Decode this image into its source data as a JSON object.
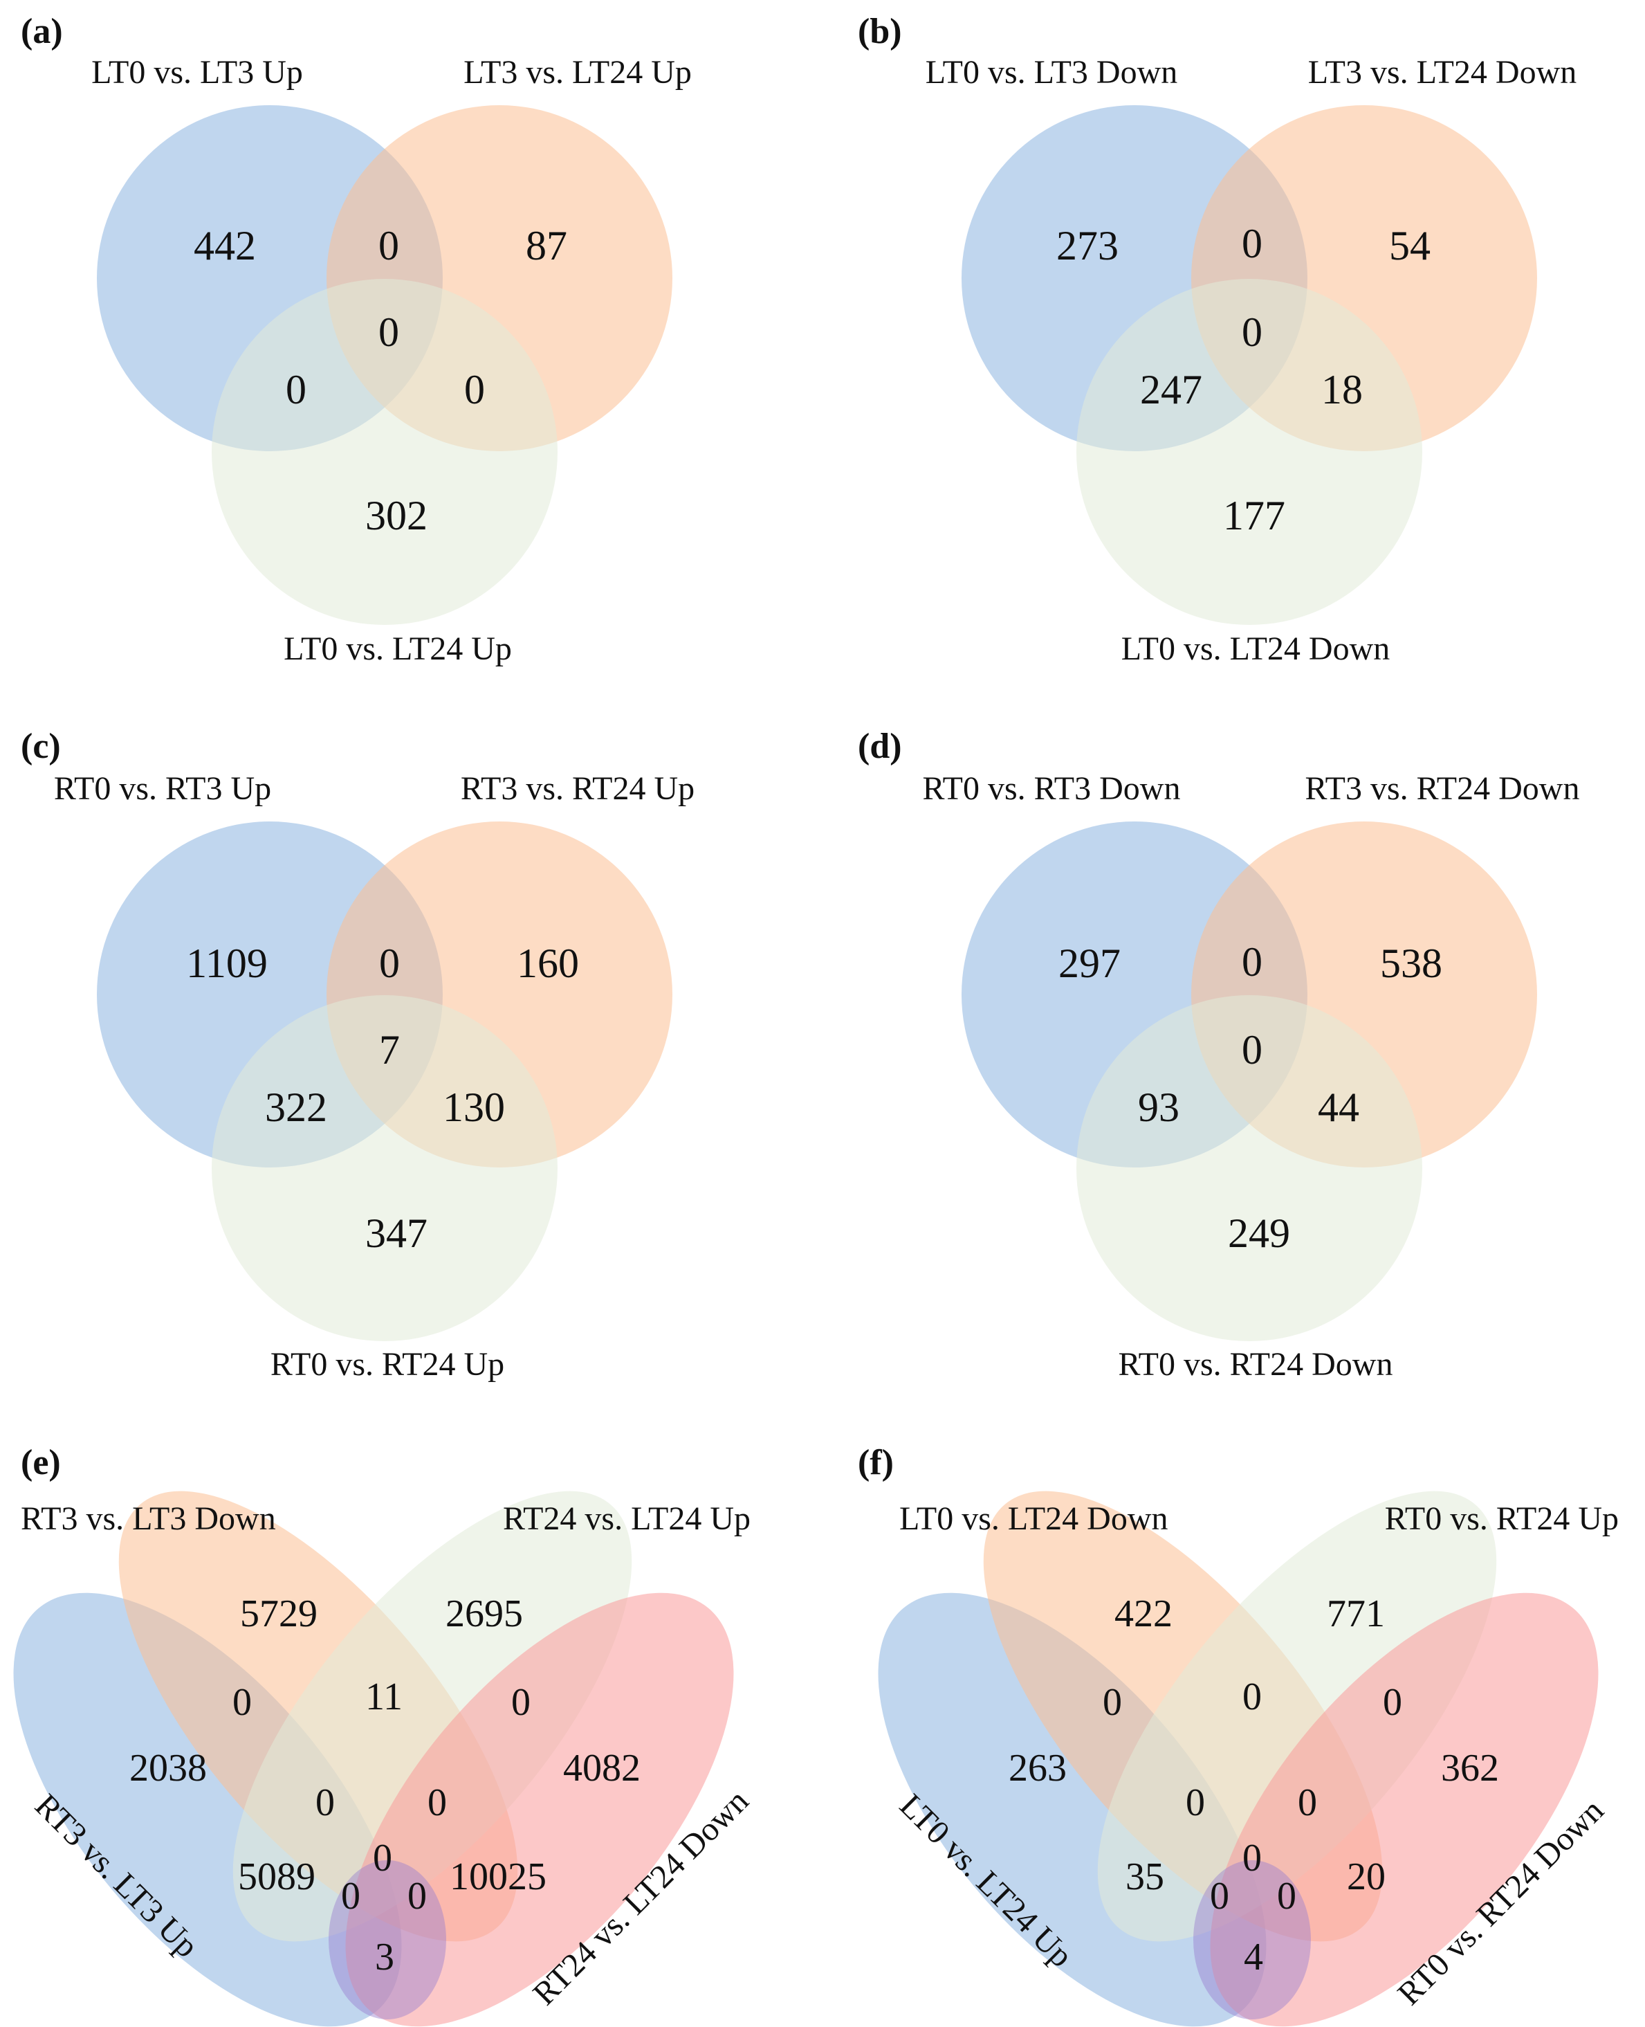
{
  "colors": {
    "blue": "#8cb4e0",
    "orange": "#fbbf93",
    "green": "#e1ebd9",
    "red": "#f99a9a",
    "purple": "#9a7fcf"
  },
  "panels": [
    {
      "letter": "(a)",
      "sets": [
        "LT0 vs. LT3 Up",
        "LT3 vs. LT24 Up",
        "LT0 vs. LT24 Up"
      ],
      "regions": {
        "A": "442",
        "B": "87",
        "C": "302",
        "AB": "0",
        "AC": "0",
        "BC": "0",
        "ABC": "0"
      }
    },
    {
      "letter": "(b)",
      "sets": [
        "LT0 vs. LT3 Down",
        "LT3 vs. LT24 Down",
        "LT0 vs. LT24 Down"
      ],
      "regions": {
        "A": "273",
        "B": "54",
        "C": "177",
        "AB": "0",
        "AC": "247",
        "BC": "18",
        "ABC": "0"
      }
    },
    {
      "letter": "(c)",
      "sets": [
        "RT0 vs. RT3 Up",
        "RT3 vs. RT24 Up",
        "RT0 vs. RT24 Up"
      ],
      "regions": {
        "A": "1109",
        "B": "160",
        "C": "347",
        "AB": "0",
        "AC": "322",
        "BC": "130",
        "ABC": "7"
      }
    },
    {
      "letter": "(d)",
      "sets": [
        "RT0 vs. RT3 Down",
        "RT3 vs. RT24 Down",
        "RT0 vs. RT24 Down"
      ],
      "regions": {
        "A": "297",
        "B": "538",
        "C": "249",
        "AB": "0",
        "AC": "93",
        "BC": "44",
        "ABC": "0"
      }
    },
    {
      "letter": "(e)",
      "sets": [
        "RT3 vs. LT3 Up",
        "RT3 vs. LT3 Down",
        "RT24 vs. LT24 Up",
        "RT24 vs. LT24 Down"
      ],
      "regions": [
        "5729",
        "2695",
        "0",
        "11",
        "0",
        "2038",
        "0",
        "0",
        "4082",
        "5089",
        "0",
        "10025",
        "0",
        "0",
        "3"
      ]
    },
    {
      "letter": "(f)",
      "sets": [
        "LT0 vs. LT24 Up",
        "LT0 vs. LT24 Down",
        "RT0 vs. RT24 Up",
        "RT0 vs. RT24 Down"
      ],
      "regions": [
        "422",
        "771",
        "0",
        "0",
        "0",
        "263",
        "0",
        "0",
        "362",
        "35",
        "0",
        "20",
        "0",
        "0",
        "4"
      ]
    }
  ]
}
